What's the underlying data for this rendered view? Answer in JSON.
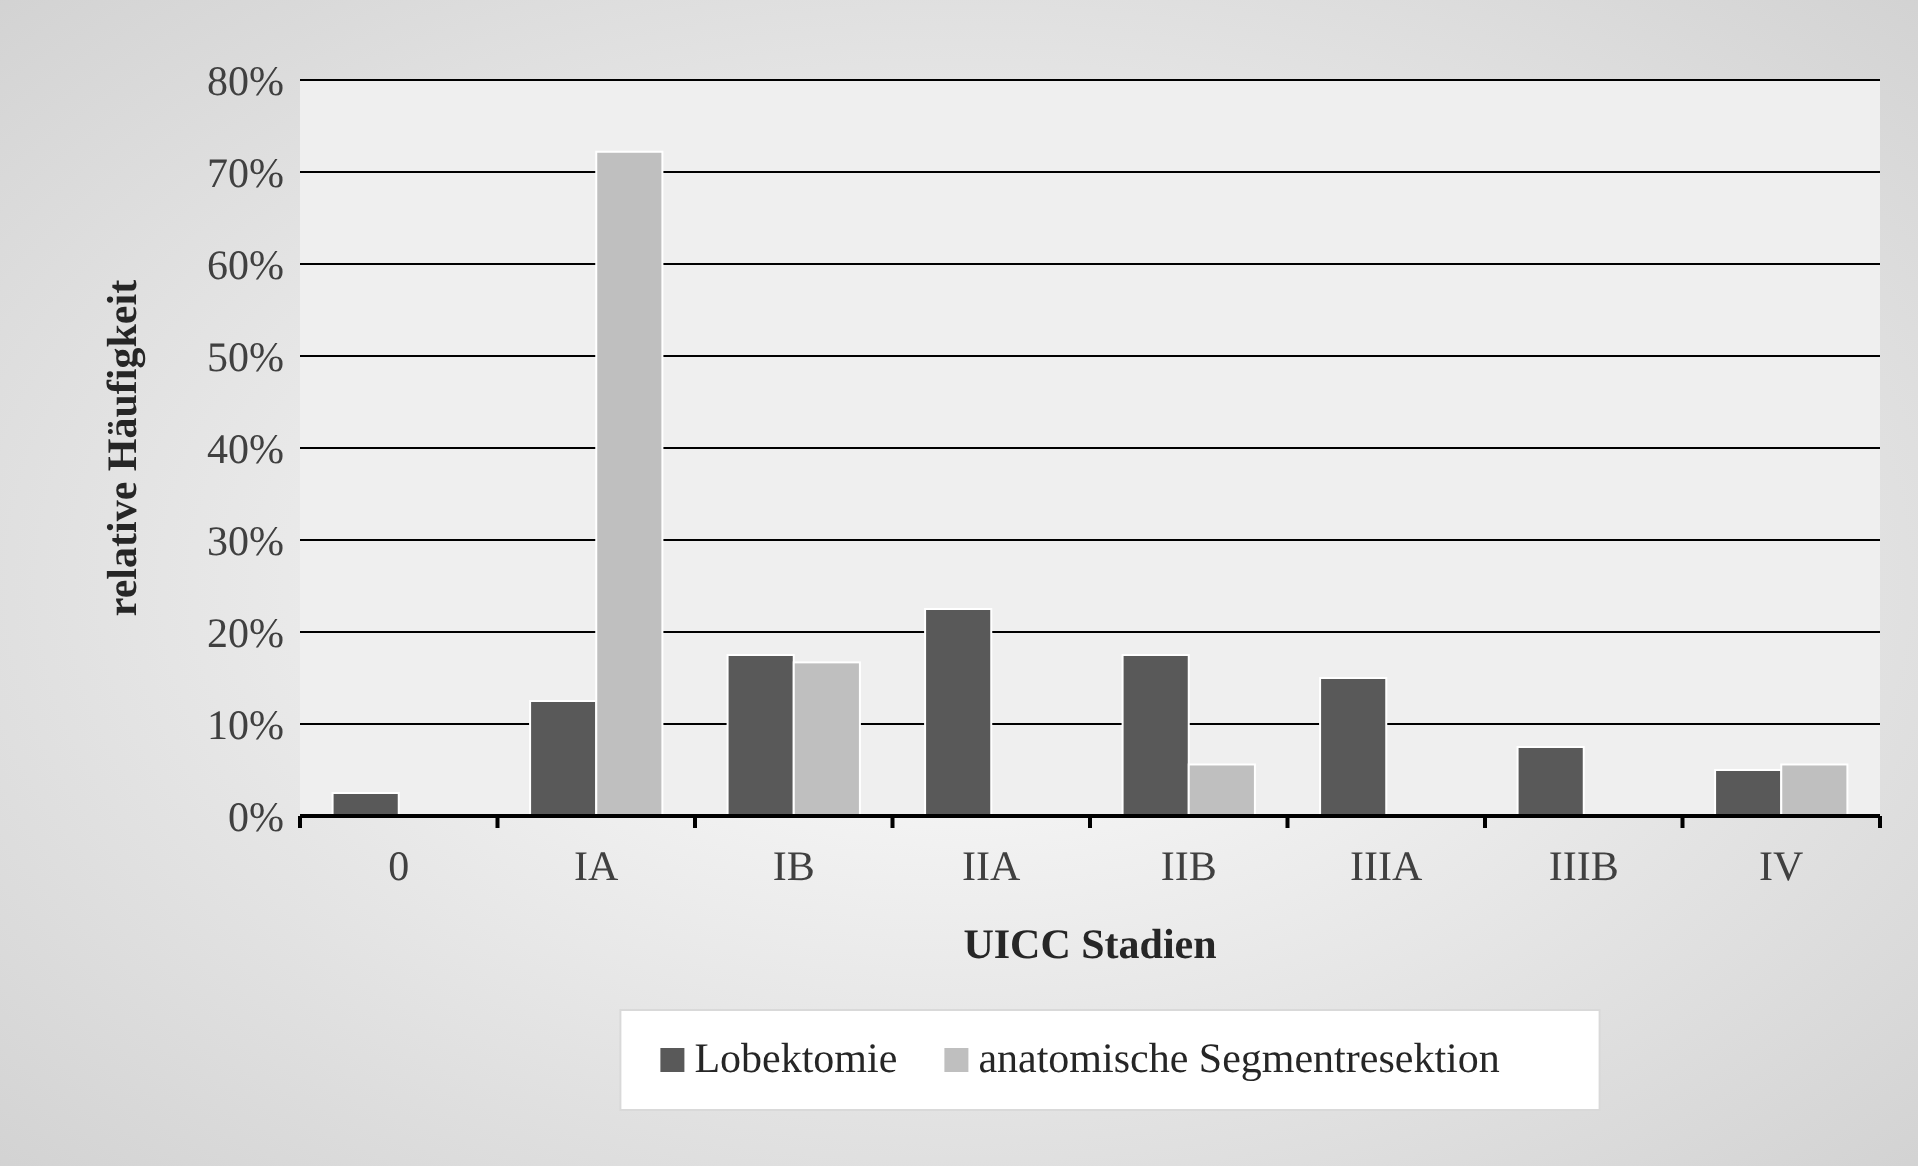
{
  "chart_data": {
    "type": "bar",
    "xlabel": "UICC Stadien",
    "ylabel": "relative Häufigkeit",
    "categories": [
      "0",
      "IA",
      "IB",
      "IIA",
      "IIB",
      "IIIA",
      "IIIB",
      "IV"
    ],
    "series": [
      {
        "name": "Lobektomie",
        "color": "#595959",
        "values": [
          2.5,
          12.5,
          17.5,
          22.5,
          17.5,
          15,
          7.5,
          5
        ]
      },
      {
        "name": "anatomische Segmentresektion",
        "color": "#bfbfbf",
        "values": [
          0,
          72.2,
          16.7,
          0,
          5.6,
          0,
          0,
          5.6
        ]
      }
    ],
    "ylim": [
      0,
      80
    ],
    "yticks": [
      {
        "value": 0,
        "label": "0%"
      },
      {
        "value": 10,
        "label": "10%"
      },
      {
        "value": 20,
        "label": "20%"
      },
      {
        "value": 30,
        "label": "30%"
      },
      {
        "value": 40,
        "label": "40%"
      },
      {
        "value": 50,
        "label": "50%"
      },
      {
        "value": 60,
        "label": "60%"
      },
      {
        "value": 70,
        "label": "70%"
      },
      {
        "value": 80,
        "label": "80%"
      }
    ],
    "grid": "y",
    "legend": "bottom"
  }
}
